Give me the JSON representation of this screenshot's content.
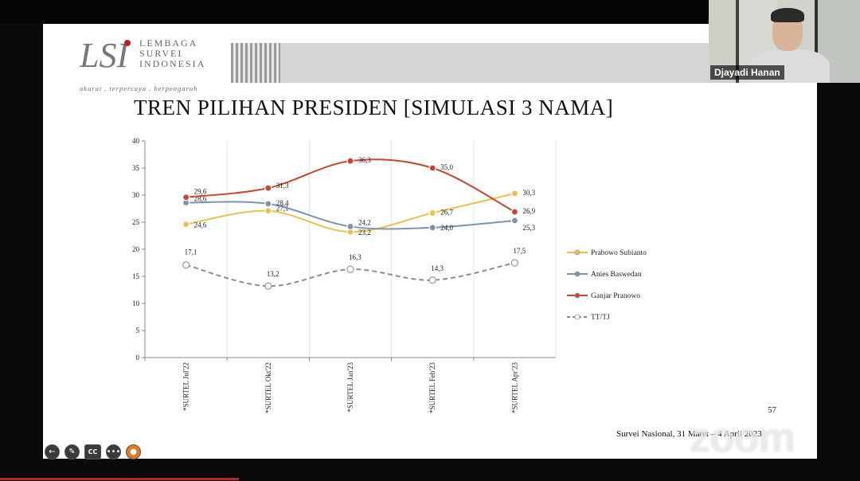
{
  "slide": {
    "logo": {
      "line1": "LEMBAGA",
      "line2": "SURVEI",
      "line3": "INDONESIA",
      "tagline": "akurat . terpercaya . berpengaruh",
      "brand_color": "#555555"
    },
    "title": "TREN PILIHAN PRESIDEN [SIMULASI 3 NAMA]",
    "page_number": "57",
    "footer": "Survei Nasional, 31 Maret – 4 April 2023"
  },
  "chart_data": {
    "type": "line",
    "title": "",
    "xlabel": "",
    "ylabel": "",
    "ylim": [
      0,
      40
    ],
    "yticks": [
      0,
      5,
      10,
      15,
      20,
      25,
      30,
      35,
      40
    ],
    "grid": "vertical",
    "legend_position": "right",
    "categories": [
      "*SURTEL Jul'22",
      "*SURTEL Okt'22",
      "*SURTEL Jan'23",
      "*SURTEL Feb'23",
      "*SURTEL Apr'23"
    ],
    "series": [
      {
        "name": "Prabowo Subianto",
        "values": [
          24.6,
          27.1,
          23.2,
          26.7,
          30.3
        ],
        "labels": [
          "24,6",
          "27,1",
          "23,2",
          "26,7",
          "30,3"
        ],
        "color": "#e9c24d",
        "dashed": false
      },
      {
        "name": "Anies Baswedan",
        "values": [
          28.6,
          28.4,
          24.2,
          24.0,
          25.3
        ],
        "labels": [
          "28,6",
          "28,4",
          "24,2",
          "24,0",
          "25,3"
        ],
        "color": "#7d93b2",
        "dashed": false
      },
      {
        "name": "Ganjar Pranowo",
        "values": [
          29.6,
          31.3,
          36.3,
          35.0,
          26.9
        ],
        "labels": [
          "29,6",
          "31,3",
          "36,3",
          "35,0",
          "26,9"
        ],
        "color": "#c8452e",
        "dashed": false
      },
      {
        "name": "TT/TJ",
        "values": [
          17.1,
          13.2,
          16.3,
          14.3,
          17.5
        ],
        "labels": [
          "17,1",
          "13,2",
          "16,3",
          "14,3",
          "17,5"
        ],
        "color": "#8c8c8c",
        "dashed": true
      }
    ]
  },
  "webcam": {
    "participant_name": "Djayadi Hanan"
  },
  "zoom": {
    "watermark": "zoom"
  },
  "toolbar": {
    "icons": [
      "back-arrow-icon",
      "pencil-icon",
      "closed-caption-icon",
      "more-icon",
      "record-icon"
    ],
    "back_glyph": "←",
    "pencil_glyph": "✎",
    "cc_label": "CC",
    "more_glyph": "•••",
    "record_glyph": "●"
  }
}
